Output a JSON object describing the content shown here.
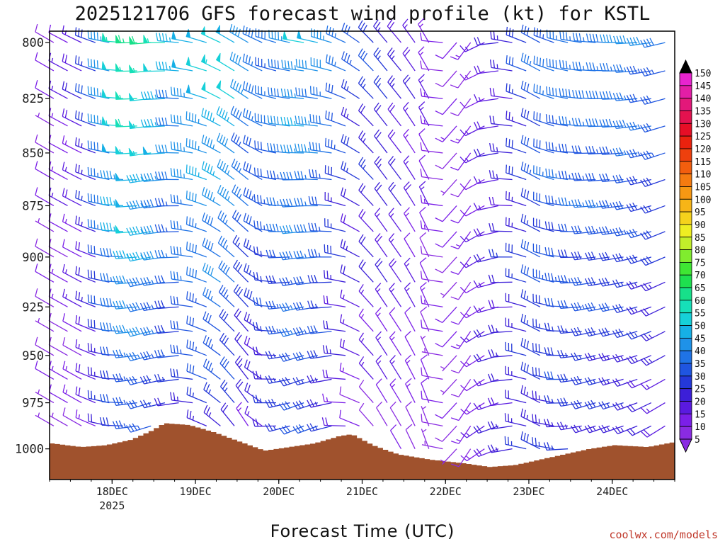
{
  "chart_data": {
    "type": "wind-barb-time-height",
    "title": "2025121706 GFS forecast wind profile (kt) for KSTL",
    "xlabel": "Forecast Time (UTC)",
    "ylabel": "",
    "x_ticks": [
      {
        "label": "18DEC",
        "sublabel": "2025",
        "day": 18
      },
      {
        "label": "19DEC",
        "sublabel": "",
        "day": 19
      },
      {
        "label": "20DEC",
        "sublabel": "",
        "day": 20
      },
      {
        "label": "21DEC",
        "sublabel": "",
        "day": 21
      },
      {
        "label": "22DEC",
        "sublabel": "",
        "day": 22
      },
      {
        "label": "23DEC",
        "sublabel": "",
        "day": 23
      },
      {
        "label": "24DEC",
        "sublabel": "",
        "day": 24
      }
    ],
    "xlim_days": [
      17.25,
      24.75
    ],
    "y_ticks": [
      "800",
      "825",
      "850",
      "875",
      "900",
      "925",
      "950",
      "975",
      "1000"
    ],
    "ylim_hpa": [
      795,
      1017
    ],
    "y_scale": "log-pressure",
    "colorbar": {
      "levels": [
        "5",
        "10",
        "15",
        "20",
        "25",
        "30",
        "35",
        "40",
        "45",
        "50",
        "55",
        "60",
        "65",
        "70",
        "75",
        "80",
        "85",
        "90",
        "95",
        "100",
        "105",
        "110",
        "115",
        "120",
        "125",
        "130",
        "135",
        "140",
        "145",
        "150"
      ],
      "colors": [
        "#8a2be2",
        "#7b1fe8",
        "#5a1ae0",
        "#3c1fd8",
        "#2438d8",
        "#1f55e0",
        "#1f73e6",
        "#1f92e8",
        "#16b0e6",
        "#16d0d8",
        "#16e0b8",
        "#17e08a",
        "#1ee04f",
        "#3fe633",
        "#80ec2e",
        "#c2ee2a",
        "#eeee22",
        "#f5d21c",
        "#f7b517",
        "#f79813",
        "#f57b10",
        "#f25e0e",
        "#ee400d",
        "#ea220e",
        "#e60e26",
        "#e3124f",
        "#e3187a",
        "#e31ea6",
        "#e824cf",
        "#ec2ce8"
      ]
    },
    "winds": {
      "dir_sampled_keys": [
        {
          "day": 17.3,
          "dir_sfc": 300,
          "dir_top": 300,
          "spd_sfc": 8,
          "spd_top": 10
        },
        {
          "day": 17.7,
          "dir_sfc": 300,
          "dir_top": 295,
          "spd_sfc": 10,
          "spd_top": 22
        },
        {
          "day": 18.0,
          "dir_sfc": 280,
          "dir_top": 280,
          "spd_sfc": 22,
          "spd_top": 48
        },
        {
          "day": 18.25,
          "dir_sfc": 265,
          "dir_top": 270,
          "spd_sfc": 30,
          "spd_top": 62
        },
        {
          "day": 18.5,
          "dir_sfc": 250,
          "dir_top": 265,
          "spd_sfc": 28,
          "spd_top": 58
        },
        {
          "day": 18.8,
          "dir_sfc": 260,
          "dir_top": 275,
          "spd_sfc": 22,
          "spd_top": 45
        },
        {
          "day": 19.1,
          "dir_sfc": 290,
          "dir_top": 285,
          "spd_sfc": 25,
          "spd_top": 50
        },
        {
          "day": 19.4,
          "dir_sfc": 320,
          "dir_top": 300,
          "spd_sfc": 25,
          "spd_top": 55
        },
        {
          "day": 19.7,
          "dir_sfc": 330,
          "dir_top": 300,
          "spd_sfc": 12,
          "spd_top": 42
        },
        {
          "day": 20.0,
          "dir_sfc": 260,
          "dir_top": 285,
          "spd_sfc": 22,
          "spd_top": 38
        },
        {
          "day": 20.3,
          "dir_sfc": 245,
          "dir_top": 280,
          "spd_sfc": 28,
          "spd_top": 48
        },
        {
          "day": 20.6,
          "dir_sfc": 250,
          "dir_top": 285,
          "spd_sfc": 25,
          "spd_top": 42
        },
        {
          "day": 20.9,
          "dir_sfc": 280,
          "dir_top": 300,
          "spd_sfc": 10,
          "spd_top": 32
        },
        {
          "day": 21.2,
          "dir_sfc": 330,
          "dir_top": 320,
          "spd_sfc": 10,
          "spd_top": 28
        },
        {
          "day": 21.5,
          "dir_sfc": 330,
          "dir_top": 320,
          "spd_sfc": 12,
          "spd_top": 22
        },
        {
          "day": 21.8,
          "dir_sfc": 340,
          "dir_top": 330,
          "spd_sfc": 8,
          "spd_top": 15
        },
        {
          "day": 22.2,
          "dir_sfc": 200,
          "dir_top": 200,
          "spd_sfc": 8,
          "spd_top": 10
        },
        {
          "day": 22.5,
          "dir_sfc": 240,
          "dir_top": 250,
          "spd_sfc": 15,
          "spd_top": 15
        },
        {
          "day": 22.8,
          "dir_sfc": 260,
          "dir_top": 280,
          "spd_sfc": 22,
          "spd_top": 22
        },
        {
          "day": 23.1,
          "dir_sfc": 300,
          "dir_top": 300,
          "spd_sfc": 25,
          "spd_top": 32
        },
        {
          "day": 23.4,
          "dir_sfc": 270,
          "dir_top": 285,
          "spd_sfc": 25,
          "spd_top": 38
        },
        {
          "day": 23.8,
          "dir_sfc": 250,
          "dir_top": 275,
          "spd_sfc": 25,
          "spd_top": 38
        },
        {
          "day": 24.2,
          "dir_sfc": 250,
          "dir_top": 270,
          "spd_sfc": 22,
          "spd_top": 40
        },
        {
          "day": 24.7,
          "dir_sfc": 235,
          "dir_top": 255,
          "spd_sfc": 15,
          "spd_top": 35
        }
      ]
    },
    "surface_pressure_hpa": [
      {
        "day": 17.25,
        "p": 997
      },
      {
        "day": 17.6,
        "p": 999
      },
      {
        "day": 17.9,
        "p": 998
      },
      {
        "day": 18.2,
        "p": 995
      },
      {
        "day": 18.45,
        "p": 990
      },
      {
        "day": 18.6,
        "p": 986
      },
      {
        "day": 18.9,
        "p": 987
      },
      {
        "day": 19.2,
        "p": 991
      },
      {
        "day": 19.5,
        "p": 996
      },
      {
        "day": 19.8,
        "p": 1001
      },
      {
        "day": 20.1,
        "p": 999
      },
      {
        "day": 20.4,
        "p": 997
      },
      {
        "day": 20.7,
        "p": 993
      },
      {
        "day": 20.85,
        "p": 992
      },
      {
        "day": 21.1,
        "p": 998
      },
      {
        "day": 21.4,
        "p": 1003
      },
      {
        "day": 21.8,
        "p": 1006
      },
      {
        "day": 22.2,
        "p": 1008
      },
      {
        "day": 22.5,
        "p": 1010
      },
      {
        "day": 22.8,
        "p": 1009
      },
      {
        "day": 23.1,
        "p": 1006
      },
      {
        "day": 23.4,
        "p": 1003
      },
      {
        "day": 23.7,
        "p": 1000
      },
      {
        "day": 24.0,
        "p": 998
      },
      {
        "day": 24.4,
        "p": 999
      },
      {
        "day": 24.75,
        "p": 996
      }
    ],
    "terrain_color": "#a0522d"
  },
  "credit": "coolwx.com/models"
}
